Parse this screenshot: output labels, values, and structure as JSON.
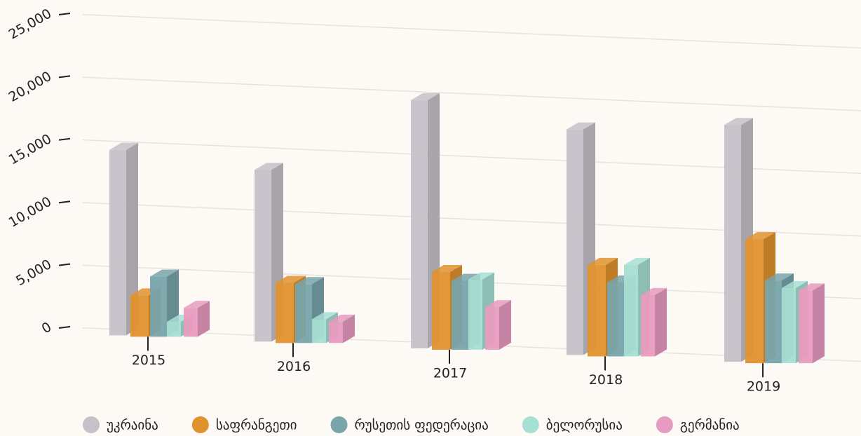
{
  "chart_data": {
    "type": "bar3d",
    "categories": [
      "2015",
      "2016",
      "2017",
      "2018",
      "2019"
    ],
    "series": [
      {
        "name": "უკრაინა",
        "color": "#c4c1c8",
        "values": [
          14800,
          13700,
          19800,
          18000,
          18900
        ]
      },
      {
        "name": "საფრანგეთი",
        "color": "#e0922e",
        "values": [
          3300,
          4800,
          6200,
          7300,
          9900
        ]
      },
      {
        "name": "რუსეთის ფედერაცია",
        "color": "#78a4aa",
        "values": [
          4800,
          4700,
          5500,
          5900,
          6600
        ]
      },
      {
        "name": "ბელორუსია",
        "color": "#a6dfd3",
        "values": [
          1200,
          1900,
          5600,
          7300,
          6000
        ]
      },
      {
        "name": "გერმანია",
        "color": "#e89bc0",
        "values": [
          2300,
          1700,
          3400,
          4900,
          5800
        ]
      }
    ],
    "ylim": [
      0,
      25000
    ],
    "yticks": [
      0,
      {
        "value": 5000,
        "label": "5,000"
      },
      {
        "value": 10000,
        "label": "10,000"
      },
      {
        "value": 15000,
        "label": "15,000"
      },
      {
        "value": 20000,
        "label": "20,000"
      },
      {
        "value": 25000,
        "label": "25,000"
      }
    ],
    "grid": true,
    "legend": "bottom"
  }
}
